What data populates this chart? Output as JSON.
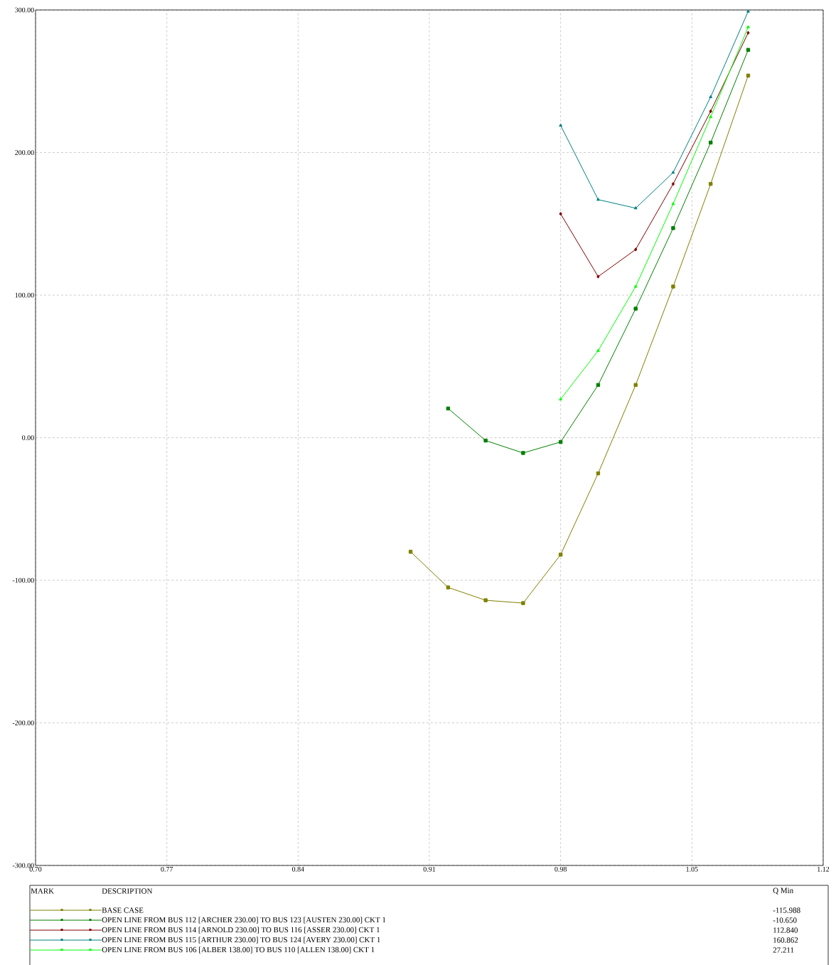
{
  "chart_data": {
    "type": "line",
    "xlim": [
      0.7,
      1.12
    ],
    "ylim": [
      -300,
      300
    ],
    "xticks": [
      {
        "value": 0.7,
        "label": "0.70"
      },
      {
        "value": 0.77,
        "label": "0.77"
      },
      {
        "value": 0.84,
        "label": "0.84"
      },
      {
        "value": 0.91,
        "label": "0.91"
      },
      {
        "value": 0.98,
        "label": "0.98"
      },
      {
        "value": 1.05,
        "label": "1.05"
      },
      {
        "value": 1.12,
        "label": "1.12"
      }
    ],
    "yticks": [
      {
        "value": -300,
        "label": "-300.00"
      },
      {
        "value": -200,
        "label": "-200.00"
      },
      {
        "value": -100,
        "label": "-100.00"
      },
      {
        "value": 0,
        "label": "0.00"
      },
      {
        "value": 100,
        "label": "100.00"
      },
      {
        "value": 200,
        "label": "200.00"
      },
      {
        "value": 300,
        "label": "300.00"
      }
    ],
    "grid": true,
    "legend": "bottom",
    "line_style": "solid",
    "annotations": [
      "MARK",
      "DESCRIPTION",
      "Q Min",
      "-115.988",
      "-10.650",
      "112.840",
      "160.862",
      "27.211"
    ],
    "series": [
      {
        "name": "BASE CASE",
        "color": "#808000",
        "marker": "square",
        "x": [
          0.9,
          0.92,
          0.94,
          0.96,
          0.98,
          1.0,
          1.02,
          1.04,
          1.06,
          1.08
        ],
        "values": [
          -80,
          -105,
          -114,
          -116,
          -82,
          -25,
          37,
          106,
          178,
          254
        ]
      },
      {
        "name": "OPEN LINE FROM BUS 112 [ARCHER 230.00] TO BUS 123 [AUSTEN 230.00] CKT 1",
        "color": "#008000",
        "marker": "square",
        "x": [
          0.92,
          0.94,
          0.96,
          0.98,
          1.0,
          1.02,
          1.04,
          1.06,
          1.08
        ],
        "values": [
          20.5,
          -2,
          -10.7,
          -3,
          37,
          90.5,
          147,
          207,
          272
        ]
      },
      {
        "name": "OPEN LINE FROM BUS 114 [ARNOLD 230.00] TO BUS 116 [ASSER 230.00] CKT 1",
        "color": "#800000",
        "marker": "diamond",
        "x": [
          0.98,
          1.0,
          1.02,
          1.04,
          1.06,
          1.08
        ],
        "values": [
          157,
          113,
          132,
          178,
          229,
          284
        ]
      },
      {
        "name": "OPEN LINE FROM BUS 115 [ARTHUR 230.00] TO BUS 124 [AVERY 230.00] CKT 1",
        "color": "#008080",
        "marker": "triangle",
        "x": [
          0.98,
          1.0,
          1.02,
          1.04,
          1.06,
          1.08
        ],
        "values": [
          219,
          167,
          161,
          186,
          239,
          299
        ]
      },
      {
        "name": "OPEN LINE FROM BUS 106 [ALBER 138.00] TO BUS 110 [ALLEN 138.00] CKT 1",
        "color": "#00ff00",
        "marker": "triangle",
        "x": [
          0.98,
          1.0,
          1.02,
          1.04,
          1.06,
          1.08
        ],
        "values": [
          27,
          61,
          106,
          164,
          225,
          288
        ]
      }
    ]
  }
}
